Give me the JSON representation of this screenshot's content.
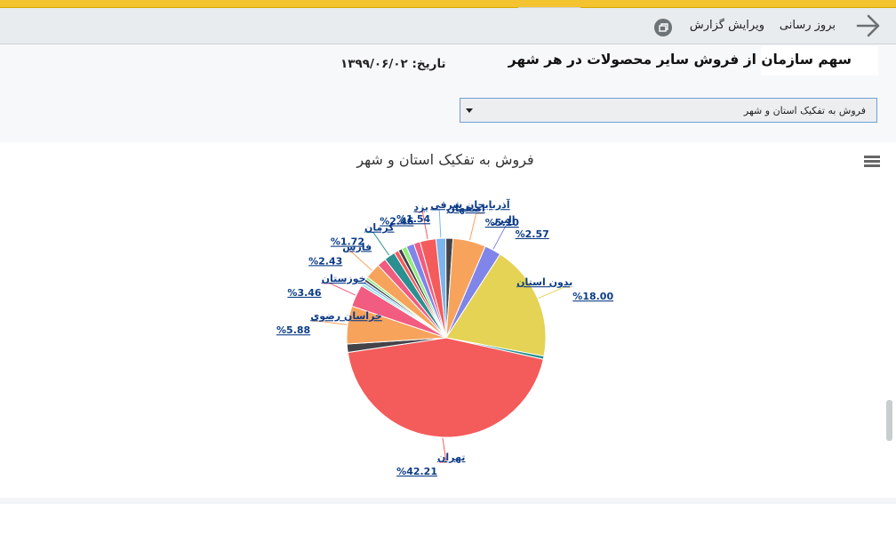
{
  "header": {
    "refresh_label": "بروز رسانی",
    "edit_label": "ویرایش گزارش"
  },
  "report": {
    "title": "سهم سازمان از فروش سایر محصولات در هر شهر",
    "date": "تاریخ: ۱۳۹۹/۰۶/۰۲"
  },
  "filter": {
    "selected": "فروش به تفکیک استان و شهر"
  },
  "colors": {
    "accent_bar": "#f4c430"
  },
  "chart_data": {
    "type": "pie",
    "title": "فروش به تفکیک استان و شهر",
    "slices": [
      {
        "name": "آذربایجان شرقی",
        "value": 1.54,
        "label": "%1.54",
        "color": "#7cb5ec",
        "labeled": true
      },
      {
        "name": "",
        "value": 1.1,
        "color": "#434348",
        "labeled": false
      },
      {
        "name": "اصفهان",
        "value": 5.1,
        "label": "%5.10",
        "color": "#f7a35c",
        "labeled": true
      },
      {
        "name": "البرز",
        "value": 2.57,
        "label": "%2.57",
        "color": "#8085e9",
        "labeled": true
      },
      {
        "name": "بدون استان",
        "value": 18.0,
        "label": "%18.00",
        "color": "#e4d354",
        "labeled": true
      },
      {
        "name": "",
        "value": 0.5,
        "color": "#2b908f",
        "labeled": false
      },
      {
        "name": "تهران",
        "value": 42.21,
        "label": "%42.21",
        "color": "#f45b5b",
        "labeled": true
      },
      {
        "name": "",
        "value": 1.3,
        "color": "#434348",
        "labeled": false
      },
      {
        "name": "خراسان رضوی",
        "value": 5.88,
        "label": "%5.88",
        "color": "#f7a35c",
        "labeled": true
      },
      {
        "name": "خوزستان",
        "value": 3.46,
        "label": "%3.46",
        "color": "#f15c80",
        "labeled": true
      },
      {
        "name": "",
        "value": 0.4,
        "color": "#91e8e1",
        "labeled": false
      },
      {
        "name": "",
        "value": 0.4,
        "color": "#7cb5ec",
        "labeled": false
      },
      {
        "name": "",
        "value": 0.4,
        "color": "#434348",
        "labeled": false
      },
      {
        "name": "",
        "value": 0.4,
        "color": "#90ed7d",
        "labeled": false
      },
      {
        "name": "فارس",
        "value": 2.43,
        "label": "%2.43",
        "color": "#f7a35c",
        "labeled": true
      },
      {
        "name": "",
        "value": 1.4,
        "color": "#f15c80",
        "labeled": false
      },
      {
        "name": "کرمان",
        "value": 1.72,
        "label": "%1.72",
        "color": "#2b908f",
        "labeled": true
      },
      {
        "name": "",
        "value": 0.7,
        "color": "#f45b5b",
        "labeled": false
      },
      {
        "name": "",
        "value": 0.6,
        "color": "#434348",
        "labeled": false
      },
      {
        "name": "",
        "value": 0.8,
        "color": "#90ed7d",
        "labeled": false
      },
      {
        "name": "",
        "value": 1.2,
        "color": "#8085e9",
        "labeled": false
      },
      {
        "name": "",
        "value": 1.0,
        "color": "#f15c80",
        "labeled": false
      },
      {
        "name": "یزد",
        "value": 2.46,
        "label": "%2.46",
        "color": "#f45b5b",
        "labeled": true
      }
    ]
  }
}
